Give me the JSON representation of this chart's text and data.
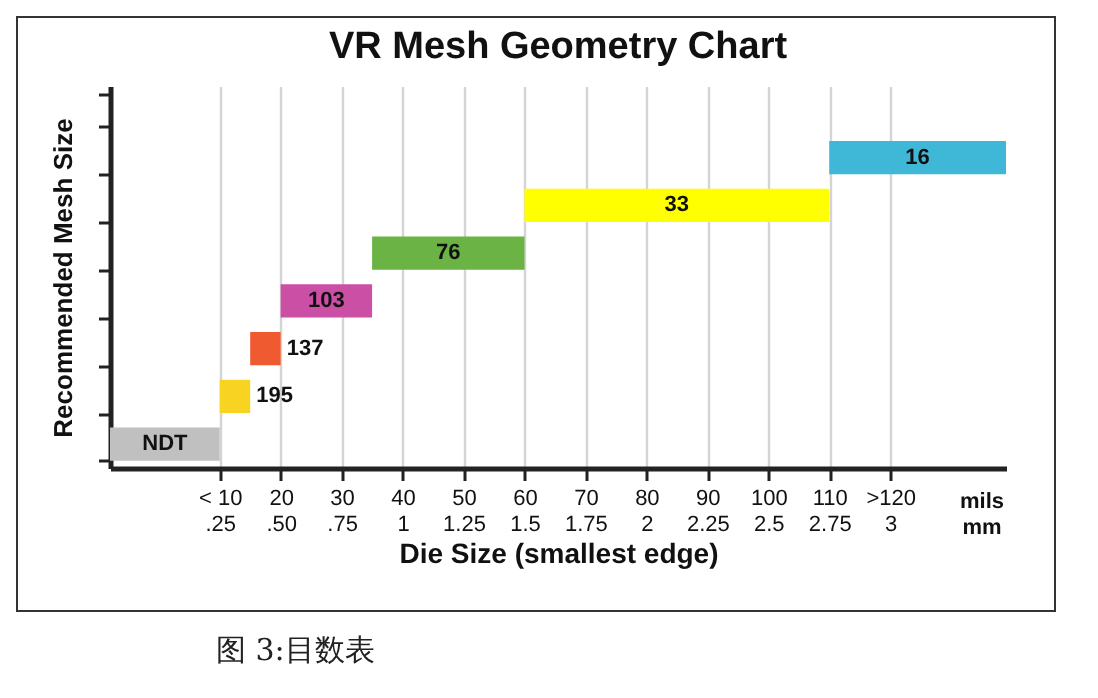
{
  "chart_data": {
    "type": "bar",
    "orientation": "horizontal",
    "title": "VR Mesh Geometry Chart",
    "xlabel": "Die Size (smallest edge)",
    "ylabel": "Recommended Mesh Size",
    "categories": [
      null,
      null,
      null,
      null,
      null,
      null,
      null,
      null
    ],
    "base": [
      null,
      110,
      60,
      35,
      20,
      15,
      10,
      -8
    ],
    "values": [
      null,
      29,
      50,
      25,
      15,
      5,
      5,
      18
    ],
    "colors": [
      null,
      "#3fb8d8",
      "#ffff00",
      "#6ab344",
      "#cc4fa6",
      "#f05a30",
      "#f9d321",
      "#c0c0c0"
    ],
    "xlim": [
      -8,
      139
    ],
    "xticks": [
      {
        "value": 10,
        "label": "< 10"
      },
      20,
      30,
      40,
      50,
      60,
      70,
      80,
      90,
      100,
      110,
      {
        "value": 120,
        "label": ">120"
      }
    ],
    "x2lim": [
      -0.2,
      3.475
    ],
    "x2ticks": [
      {
        "value": 0.25,
        "label": ".25"
      },
      {
        "value": 0.5,
        "label": ".50"
      },
      {
        "value": 0.75,
        "label": ".75"
      },
      1,
      1.25,
      1.5,
      1.75,
      2,
      2.25,
      2.5,
      2.75,
      3
    ],
    "grid": "x",
    "tick_labels": "x",
    "annotations": [
      "16",
      "33",
      "76",
      "103",
      "137",
      "195",
      "NDT",
      "mils",
      "mm",
      "图 3:目数表"
    ]
  }
}
